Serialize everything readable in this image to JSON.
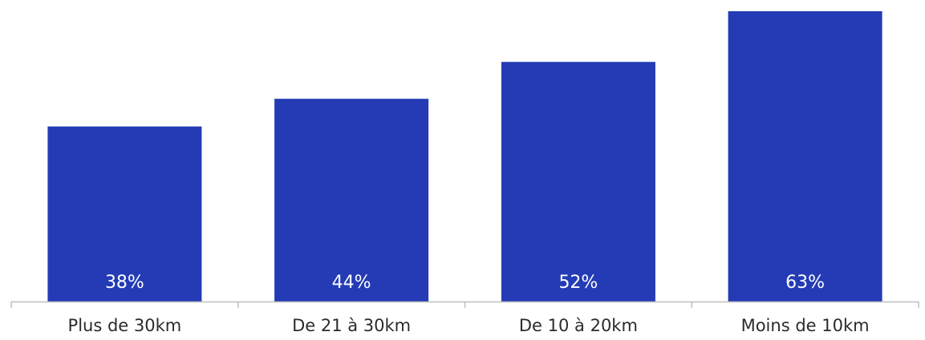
{
  "chart_data": {
    "type": "bar",
    "categories": [
      "Plus de 30km",
      "De 21 à 30km",
      "De 10 à 20km",
      "Moins de 10km"
    ],
    "values": [
      38,
      44,
      52,
      63
    ],
    "value_labels": [
      "38%",
      "44%",
      "52%",
      "63%"
    ],
    "unit": "%",
    "ylim": [
      0,
      63
    ],
    "grid": false,
    "legend": "none",
    "bar_color": "#243bb5",
    "axis_color": "#bfbfbf",
    "label_color": "#ffffff",
    "tick_label_color": "#2b2b2b"
  }
}
